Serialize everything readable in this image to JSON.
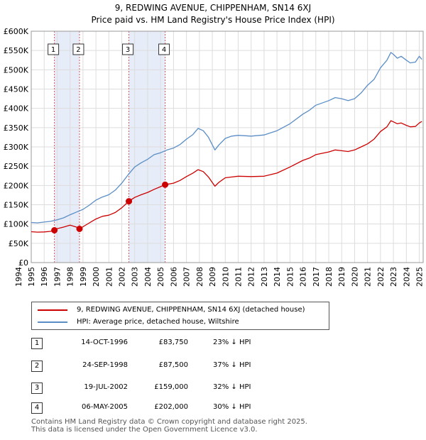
{
  "title": "9, REDWING AVENUE, CHIPPENHAM, SN14 6XJ",
  "subtitle": "Price paid vs. HM Land Registry's House Price Index (HPI)",
  "colors": {
    "property": "#cc0000",
    "hpi": "#5b8ec6",
    "grid": "#dddddd",
    "band": "#e6ecf8",
    "vline": "#e05555"
  },
  "chart_data": {
    "type": "line",
    "xlim": [
      1995.0,
      2025.3
    ],
    "ylim": [
      0,
      600000
    ],
    "x_ticks": [
      1994,
      1995,
      1996,
      1997,
      1998,
      1999,
      2000,
      2001,
      2002,
      2003,
      2004,
      2005,
      2006,
      2007,
      2008,
      2009,
      2010,
      2011,
      2012,
      2013,
      2014,
      2015,
      2016,
      2017,
      2018,
      2019,
      2020,
      2021,
      2022,
      2023,
      2024,
      2025
    ],
    "y_ticks": [
      0,
      50000,
      100000,
      150000,
      200000,
      250000,
      300000,
      350000,
      400000,
      450000,
      500000,
      550000,
      600000
    ],
    "y_tick_labels": [
      "£0",
      "£50K",
      "£100K",
      "£150K",
      "£200K",
      "£250K",
      "£300K",
      "£350K",
      "£400K",
      "£450K",
      "£500K",
      "£550K",
      "£600K"
    ],
    "series": [
      {
        "name": "9, REDWING AVENUE, CHIPPENHAM, SN14 6XJ (detached house)",
        "x": [
          1995.0,
          1995.5,
          1996.0,
          1996.5,
          1996.79,
          1997.0,
          1997.5,
          1998.0,
          1998.5,
          1998.73,
          1999.0,
          1999.5,
          2000.0,
          2000.5,
          2001.0,
          2001.5,
          2002.0,
          2002.55,
          2003.0,
          2003.5,
          2004.0,
          2004.5,
          2005.0,
          2005.35,
          2006.0,
          2006.5,
          2007.0,
          2007.5,
          2007.9,
          2008.3,
          2008.7,
          2009.2,
          2009.5,
          2010.0,
          2010.5,
          2011.0,
          2012.0,
          2013.0,
          2014.0,
          2015.0,
          2016.0,
          2016.5,
          2017.0,
          2018.0,
          2018.5,
          2019.0,
          2019.5,
          2020.0,
          2020.5,
          2021.0,
          2021.5,
          2022.0,
          2022.5,
          2022.8,
          2023.0,
          2023.3,
          2023.6,
          2024.0,
          2024.3,
          2024.7,
          2025.0,
          2025.2
        ],
        "values": [
          80000,
          79000,
          79500,
          81000,
          83750,
          88000,
          92000,
          97000,
          92000,
          87500,
          93000,
          103000,
          113000,
          120000,
          123000,
          130000,
          142000,
          159000,
          169000,
          176000,
          182000,
          190000,
          197000,
          202000,
          206000,
          213000,
          223000,
          232000,
          241000,
          236000,
          222000,
          198000,
          208000,
          220000,
          222000,
          224000,
          223000,
          224000,
          232000,
          248000,
          265000,
          271000,
          280000,
          287000,
          292000,
          290000,
          288000,
          292000,
          300000,
          308000,
          320000,
          340000,
          352000,
          368000,
          365000,
          360000,
          362000,
          356000,
          352000,
          353000,
          362000,
          366000
        ]
      },
      {
        "name": "HPI: Average price, detached house, Wiltshire",
        "x": [
          1995.0,
          1995.5,
          1996.0,
          1996.5,
          1997.0,
          1997.5,
          1998.0,
          1998.5,
          1999.0,
          1999.5,
          2000.0,
          2000.5,
          2001.0,
          2001.5,
          2002.0,
          2002.5,
          2003.0,
          2003.5,
          2004.0,
          2004.5,
          2005.0,
          2005.5,
          2006.0,
          2006.5,
          2007.0,
          2007.5,
          2007.9,
          2008.3,
          2008.7,
          2009.2,
          2009.5,
          2010.0,
          2010.5,
          2011.0,
          2012.0,
          2013.0,
          2014.0,
          2015.0,
          2016.0,
          2016.5,
          2017.0,
          2018.0,
          2018.5,
          2019.0,
          2019.5,
          2020.0,
          2020.5,
          2021.0,
          2021.5,
          2022.0,
          2022.5,
          2022.8,
          2023.0,
          2023.3,
          2023.6,
          2024.0,
          2024.3,
          2024.7,
          2025.0,
          2025.2
        ],
        "values": [
          104000,
          103000,
          105000,
          107000,
          111000,
          116000,
          124000,
          131000,
          138000,
          149000,
          162000,
          170000,
          176000,
          188000,
          206000,
          228000,
          248000,
          259000,
          268000,
          280000,
          285000,
          292000,
          297000,
          306000,
          320000,
          332000,
          348000,
          342000,
          325000,
          292000,
          305000,
          322000,
          328000,
          330000,
          328000,
          331000,
          342000,
          360000,
          385000,
          395000,
          408000,
          420000,
          428000,
          425000,
          420000,
          425000,
          440000,
          460000,
          475000,
          505000,
          525000,
          545000,
          540000,
          530000,
          535000,
          525000,
          518000,
          520000,
          535000,
          527000
        ]
      }
    ],
    "shaded_bands": [
      [
        1996.79,
        1998.73
      ],
      [
        2002.55,
        2005.35
      ]
    ],
    "sales": [
      {
        "label": "1",
        "x": 1996.79,
        "value": 83750
      },
      {
        "label": "2",
        "x": 1998.73,
        "value": 87500
      },
      {
        "label": "3",
        "x": 2002.55,
        "value": 159000
      },
      {
        "label": "4",
        "x": 2005.35,
        "value": 202000
      }
    ],
    "legend_placement": "below"
  },
  "legend": {
    "property_label": "9, REDWING AVENUE, CHIPPENHAM, SN14 6XJ (detached house)",
    "hpi_label": "HPI: Average price, detached house, Wiltshire"
  },
  "transactions": [
    {
      "num": "1",
      "date": "14-OCT-1996",
      "price": "£83,750",
      "hpi": "23% ↓ HPI"
    },
    {
      "num": "2",
      "date": "24-SEP-1998",
      "price": "£87,500",
      "hpi": "37% ↓ HPI"
    },
    {
      "num": "3",
      "date": "19-JUL-2002",
      "price": "£159,000",
      "hpi": "32% ↓ HPI"
    },
    {
      "num": "4",
      "date": "06-MAY-2005",
      "price": "£202,000",
      "hpi": "30% ↓ HPI"
    }
  ],
  "footer": {
    "line1": "Contains HM Land Registry data © Crown copyright and database right 2025.",
    "line2": "This data is licensed under the Open Government Licence v3.0."
  }
}
